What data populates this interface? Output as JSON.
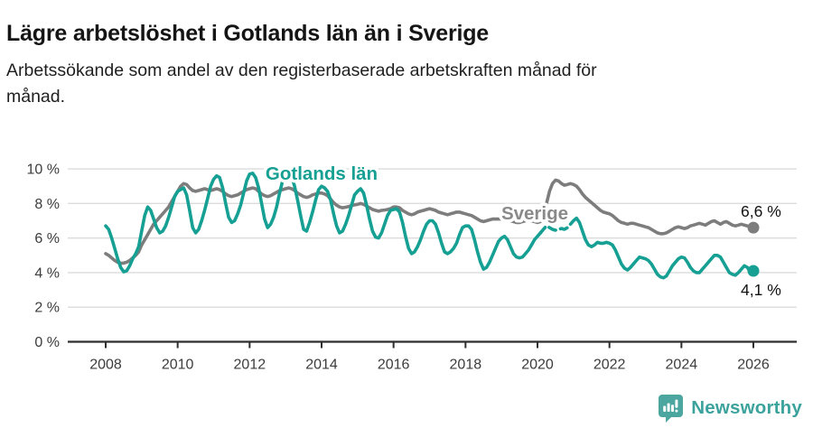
{
  "header": {
    "title": "Lägre arbetslöshet i Gotlands län än i Sverige",
    "subtitle_lines": [
      "Arbetssökande som andel av den registerbaserade arbetskraften månad för",
      "månad."
    ]
  },
  "colors": {
    "gotland": "#16a094",
    "sverige": "#7d7d7d",
    "sverige_label": "#8a8a8a",
    "grid": "#dcdcdc",
    "axis": "#2e2e2e",
    "tick_text": "#3c3c3c",
    "end_label_text": "#111111",
    "brand": "#3ca29c",
    "background": "#ffffff"
  },
  "chart_data": {
    "type": "line",
    "unit": "%",
    "frequency": "monthly",
    "x_start": "2008-01",
    "x_end": "2026-01",
    "ylim": [
      0,
      10
    ],
    "grid": "horizontal",
    "legend_position": "inline-labels",
    "y_ticks": [
      {
        "value": 0,
        "label": "0 %"
      },
      {
        "value": 2,
        "label": "2 %"
      },
      {
        "value": 4,
        "label": "4 %"
      },
      {
        "value": 6,
        "label": "6 %"
      },
      {
        "value": 8,
        "label": "8 %"
      },
      {
        "value": 10,
        "label": "10 %"
      }
    ],
    "x_ticks": [
      {
        "year": 2008,
        "label": "2008"
      },
      {
        "year": 2010,
        "label": "2010"
      },
      {
        "year": 2012,
        "label": "2012"
      },
      {
        "year": 2014,
        "label": "2014"
      },
      {
        "year": 2016,
        "label": "2016"
      },
      {
        "year": 2018,
        "label": "2018"
      },
      {
        "year": 2020,
        "label": "2020"
      },
      {
        "year": 2022,
        "label": "2022"
      },
      {
        "year": 2024,
        "label": "2024"
      },
      {
        "year": 2026,
        "label": "2026"
      }
    ],
    "series": [
      {
        "name": "Sverige",
        "color": "#7d7d7d",
        "label_color": "#8a8a8a",
        "label_pos": {
          "x": 592,
          "y": 243
        },
        "end_label": "6,6 %",
        "end_label_pos": {
          "x": 820,
          "y": 240
        },
        "last_value": 6.6,
        "values": [
          5.1,
          5.0,
          4.85,
          4.7,
          4.6,
          4.55,
          4.55,
          4.6,
          4.7,
          4.85,
          5.0,
          5.2,
          5.6,
          5.9,
          6.2,
          6.5,
          6.8,
          7.0,
          7.2,
          7.4,
          7.6,
          7.8,
          8.1,
          8.4,
          8.7,
          9.0,
          9.15,
          9.1,
          8.9,
          8.75,
          8.7,
          8.75,
          8.8,
          8.85,
          8.8,
          8.75,
          8.8,
          8.85,
          8.8,
          8.7,
          8.55,
          8.45,
          8.4,
          8.45,
          8.5,
          8.6,
          8.7,
          8.8,
          8.85,
          8.9,
          8.85,
          8.7,
          8.55,
          8.45,
          8.4,
          8.45,
          8.55,
          8.65,
          8.75,
          8.8,
          8.85,
          8.9,
          8.85,
          8.75,
          8.6,
          8.5,
          8.4,
          8.35,
          8.4,
          8.5,
          8.55,
          8.6,
          8.6,
          8.55,
          8.45,
          8.25,
          8.05,
          7.9,
          7.8,
          7.75,
          7.78,
          7.82,
          7.88,
          7.92,
          7.95,
          8.0,
          7.95,
          7.85,
          7.75,
          7.65,
          7.6,
          7.55,
          7.6,
          7.62,
          7.65,
          7.7,
          7.8,
          7.8,
          7.75,
          7.6,
          7.5,
          7.4,
          7.35,
          7.4,
          7.5,
          7.55,
          7.6,
          7.65,
          7.7,
          7.65,
          7.6,
          7.5,
          7.45,
          7.4,
          7.35,
          7.4,
          7.45,
          7.5,
          7.5,
          7.45,
          7.4,
          7.35,
          7.3,
          7.2,
          7.1,
          7.0,
          6.95,
          7.0,
          7.05,
          7.1,
          7.1,
          7.1,
          7.1,
          7.1,
          7.05,
          7.0,
          6.95,
          6.9,
          6.9,
          6.95,
          7.0,
          7.05,
          7.0,
          6.95,
          6.9,
          6.95,
          7.3,
          8.0,
          8.7,
          9.15,
          9.35,
          9.3,
          9.15,
          9.05,
          9.1,
          9.15,
          9.1,
          9.0,
          8.8,
          8.55,
          8.35,
          8.2,
          8.05,
          7.9,
          7.75,
          7.6,
          7.5,
          7.45,
          7.4,
          7.3,
          7.15,
          7.0,
          6.9,
          6.85,
          6.8,
          6.85,
          6.85,
          6.8,
          6.75,
          6.7,
          6.65,
          6.6,
          6.5,
          6.4,
          6.3,
          6.25,
          6.25,
          6.3,
          6.4,
          6.5,
          6.6,
          6.65,
          6.6,
          6.55,
          6.6,
          6.7,
          6.75,
          6.8,
          6.85,
          6.8,
          6.75,
          6.85,
          6.95,
          7.0,
          6.9,
          6.8,
          6.9,
          6.95,
          6.85,
          6.75,
          6.7,
          6.75,
          6.8,
          6.75,
          6.7,
          6.65,
          6.6
        ]
      },
      {
        "name": "Gotlands län",
        "color": "#16a094",
        "label_color": "#16a094",
        "label_pos": {
          "x": 356,
          "y": 199
        },
        "end_label": "4,1 %",
        "end_label_pos": {
          "x": 820,
          "y": 327
        },
        "last_value": 4.1,
        "dash_from": 145,
        "dash_to": 155,
        "values": [
          6.7,
          6.5,
          6.0,
          5.4,
          4.8,
          4.3,
          4.05,
          4.1,
          4.4,
          4.8,
          5.1,
          5.5,
          6.4,
          7.3,
          7.8,
          7.6,
          7.1,
          6.6,
          6.3,
          6.4,
          6.7,
          7.2,
          7.8,
          8.4,
          8.7,
          8.8,
          8.9,
          8.5,
          7.6,
          6.6,
          6.3,
          6.5,
          7.0,
          7.6,
          8.3,
          9.0,
          9.4,
          9.6,
          9.5,
          8.9,
          8.0,
          7.2,
          6.9,
          7.0,
          7.4,
          7.9,
          8.6,
          9.3,
          9.7,
          9.75,
          9.5,
          8.9,
          8.0,
          7.1,
          6.6,
          6.8,
          7.2,
          7.8,
          8.6,
          9.3,
          9.7,
          9.8,
          9.6,
          9.0,
          8.2,
          7.3,
          6.5,
          6.4,
          6.9,
          7.5,
          8.2,
          8.8,
          9.0,
          8.9,
          8.7,
          8.2,
          7.4,
          6.7,
          6.3,
          6.4,
          6.8,
          7.3,
          7.9,
          8.5,
          8.7,
          8.85,
          8.6,
          7.9,
          7.1,
          6.4,
          6.05,
          6.0,
          6.3,
          6.8,
          7.3,
          7.6,
          7.65,
          7.7,
          7.5,
          6.9,
          6.1,
          5.4,
          5.1,
          5.2,
          5.5,
          5.9,
          6.4,
          6.8,
          7.0,
          7.0,
          6.8,
          6.3,
          5.7,
          5.2,
          5.1,
          5.2,
          5.4,
          5.7,
          6.2,
          6.6,
          6.7,
          6.7,
          6.5,
          5.9,
          5.2,
          4.6,
          4.2,
          4.3,
          4.6,
          5.0,
          5.4,
          5.8,
          6.0,
          6.1,
          5.9,
          5.5,
          5.1,
          4.9,
          4.85,
          4.9,
          5.1,
          5.3,
          5.6,
          5.9,
          6.1,
          6.3,
          6.5,
          6.7,
          6.6,
          6.5,
          6.45,
          6.5,
          6.55,
          6.5,
          6.6,
          6.8,
          7.0,
          7.15,
          6.9,
          6.4,
          5.9,
          5.6,
          5.5,
          5.6,
          5.75,
          5.7,
          5.7,
          5.75,
          5.7,
          5.6,
          5.3,
          4.9,
          4.5,
          4.25,
          4.15,
          4.3,
          4.5,
          4.7,
          4.9,
          4.85,
          4.8,
          4.7,
          4.5,
          4.2,
          3.9,
          3.75,
          3.7,
          3.8,
          4.1,
          4.4,
          4.6,
          4.8,
          4.9,
          4.85,
          4.6,
          4.3,
          4.1,
          4.0,
          4.0,
          4.2,
          4.4,
          4.6,
          4.8,
          5.0,
          5.0,
          4.9,
          4.6,
          4.3,
          4.0,
          3.9,
          3.85,
          4.0,
          4.2,
          4.4,
          4.3,
          4.0,
          4.1
        ]
      }
    ]
  },
  "footer": {
    "brand": "Newsworthy"
  }
}
